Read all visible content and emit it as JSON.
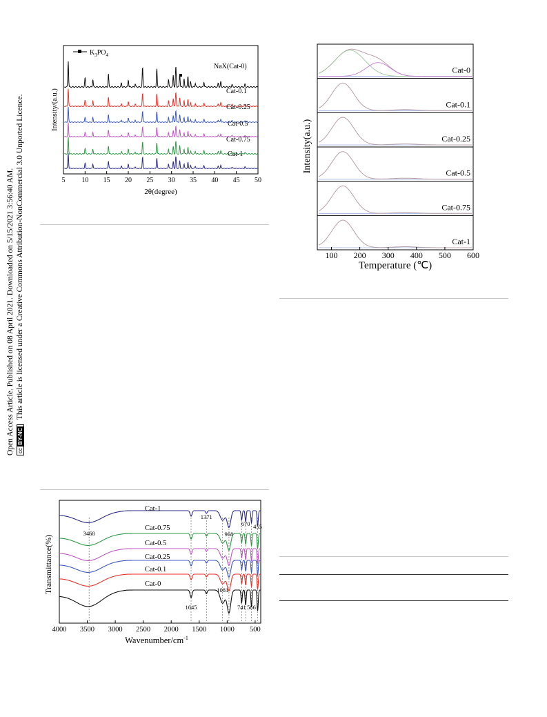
{
  "side_notice": {
    "line1": "Open Access Article. Published on 08 April 2021. Downloaded on 5/15/2021 3:56:40 AM.",
    "line2": "This article is licensed under a Creative Commons Attribution-NonCommercial 3.0 Unported Licence.",
    "badge_cc": "cc",
    "badge_text": "BY-NC"
  },
  "xrd": {
    "legend_label": "K3PO4",
    "ylabel": "Intensity/(a.u.)",
    "xlabel": "2θ(degree)",
    "x_ticks": [
      "5",
      "10",
      "15",
      "20",
      "25",
      "30",
      "35",
      "40",
      "45",
      "50"
    ],
    "series": [
      {
        "name": "NaX(Cat-0)",
        "color": "#111111"
      },
      {
        "name": "Cat-0.1",
        "color": "#e8322a"
      },
      {
        "name": "Cat-0.25",
        "color": "#3c59c0"
      },
      {
        "name": "Cat-0.5",
        "color": "#c056c4"
      },
      {
        "name": "Cat-0.75",
        "color": "#2f9a46"
      },
      {
        "name": "Cat-1",
        "color": "#2b2b8a"
      }
    ]
  },
  "tpd": {
    "ylabel": "Intensity(a.u.)",
    "xlabel": "Temperature (℃)",
    "x_ticks": [
      "100",
      "200",
      "300",
      "400",
      "500",
      "600"
    ],
    "panels": [
      "Cat-0",
      "Cat-0.1",
      "Cat-0.25",
      "Cat-0.5",
      "Cat-0.75",
      "Cat-1"
    ]
  },
  "ftir": {
    "ylabel": "Transmittance(%)",
    "xlabel": "Wavenumber/cm",
    "xlabel_sup": "-1",
    "x_ticks": [
      "4000",
      "3500",
      "3000",
      "2500",
      "2000",
      "1500",
      "1000",
      "500"
    ],
    "series": [
      {
        "name": "Cat-1",
        "color": "#2b2b8a"
      },
      {
        "name": "Cat-0.75",
        "color": "#2f9a46"
      },
      {
        "name": "Cat-0.5",
        "color": "#c056c4"
      },
      {
        "name": "Cat-0.25",
        "color": "#3c59c0"
      },
      {
        "name": "Cat-0.1",
        "color": "#e8322a"
      },
      {
        "name": "Cat-0",
        "color": "#111111"
      }
    ],
    "annotations": [
      "3468",
      "1371",
      "968",
      "670",
      "455",
      "1645",
      "1081",
      "741",
      "566"
    ]
  }
}
